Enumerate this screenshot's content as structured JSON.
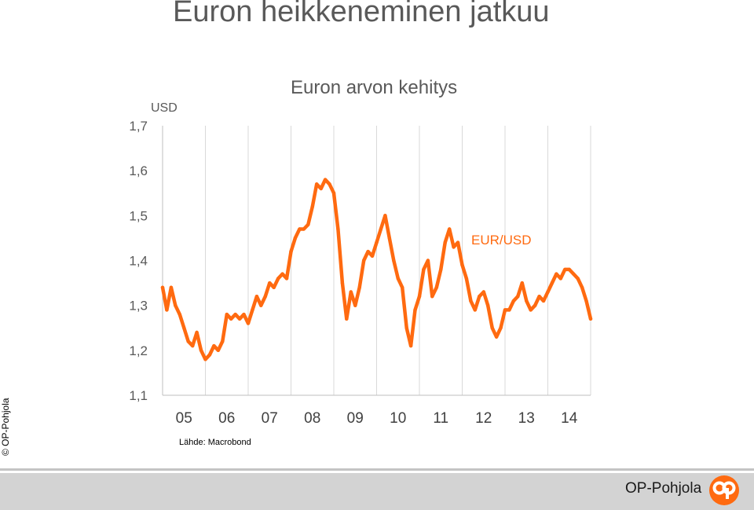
{
  "slide": {
    "title": "Euron heikkeneminen jatkuu",
    "copyright": "© OP-Pohjola",
    "source": "Lähde: Macrobond"
  },
  "footer": {
    "brand": "OP-Pohjola",
    "logo_icon": "op-logo-icon",
    "band_color": "#d3d3d3",
    "logo_color": "#ff6a10"
  },
  "chart_data": {
    "type": "line",
    "title": "Euron arvon kehitys",
    "ylabel": "USD",
    "xlabel": "",
    "x_tick_labels": [
      "05",
      "06",
      "07",
      "08",
      "09",
      "10",
      "11",
      "12",
      "13",
      "14"
    ],
    "y_tick_labels": [
      "1,1",
      "1,2",
      "1,3",
      "1,4",
      "1,5",
      "1,6",
      "1,7"
    ],
    "y_ticks": [
      1.1,
      1.2,
      1.3,
      1.4,
      1.5,
      1.6,
      1.7
    ],
    "xlim": [
      2004.7,
      2014.7
    ],
    "ylim": [
      1.1,
      1.7
    ],
    "grid": "vertical",
    "series_color": "#ff6a10",
    "series": [
      {
        "name": "EUR/USD",
        "x": [
          2004.7,
          2004.8,
          2004.9,
          2005.0,
          2005.1,
          2005.2,
          2005.3,
          2005.4,
          2005.5,
          2005.6,
          2005.7,
          2005.8,
          2005.9,
          2006.0,
          2006.1,
          2006.2,
          2006.3,
          2006.4,
          2006.5,
          2006.6,
          2006.7,
          2006.8,
          2006.9,
          2007.0,
          2007.1,
          2007.2,
          2007.3,
          2007.4,
          2007.5,
          2007.6,
          2007.7,
          2007.8,
          2007.9,
          2008.0,
          2008.1,
          2008.2,
          2008.3,
          2008.4,
          2008.5,
          2008.6,
          2008.7,
          2008.8,
          2008.9,
          2009.0,
          2009.1,
          2009.2,
          2009.3,
          2009.4,
          2009.5,
          2009.6,
          2009.7,
          2009.8,
          2009.9,
          2010.0,
          2010.1,
          2010.2,
          2010.3,
          2010.4,
          2010.5,
          2010.6,
          2010.7,
          2010.8,
          2010.9,
          2011.0,
          2011.1,
          2011.2,
          2011.3,
          2011.4,
          2011.5,
          2011.6,
          2011.7,
          2011.8,
          2011.9,
          2012.0,
          2012.1,
          2012.2,
          2012.3,
          2012.4,
          2012.5,
          2012.6,
          2012.7,
          2012.8,
          2012.9,
          2013.0,
          2013.1,
          2013.2,
          2013.3,
          2013.4,
          2013.5,
          2013.6,
          2013.7,
          2013.8,
          2013.9,
          2014.0,
          2014.1,
          2014.2,
          2014.3,
          2014.4,
          2014.5,
          2014.6,
          2014.7
        ],
        "values": [
          1.34,
          1.29,
          1.34,
          1.3,
          1.28,
          1.25,
          1.22,
          1.21,
          1.24,
          1.2,
          1.18,
          1.19,
          1.21,
          1.2,
          1.22,
          1.28,
          1.27,
          1.28,
          1.27,
          1.28,
          1.26,
          1.29,
          1.32,
          1.3,
          1.32,
          1.35,
          1.34,
          1.36,
          1.37,
          1.36,
          1.42,
          1.45,
          1.47,
          1.47,
          1.48,
          1.52,
          1.57,
          1.56,
          1.58,
          1.57,
          1.55,
          1.47,
          1.35,
          1.27,
          1.33,
          1.3,
          1.34,
          1.4,
          1.42,
          1.41,
          1.44,
          1.47,
          1.5,
          1.45,
          1.4,
          1.36,
          1.34,
          1.25,
          1.21,
          1.29,
          1.32,
          1.38,
          1.4,
          1.32,
          1.34,
          1.38,
          1.44,
          1.47,
          1.43,
          1.44,
          1.39,
          1.36,
          1.31,
          1.29,
          1.32,
          1.33,
          1.3,
          1.25,
          1.23,
          1.25,
          1.29,
          1.29,
          1.31,
          1.32,
          1.35,
          1.31,
          1.29,
          1.3,
          1.32,
          1.31,
          1.33,
          1.35,
          1.37,
          1.36,
          1.38,
          1.38,
          1.37,
          1.36,
          1.34,
          1.31,
          1.27
        ]
      }
    ]
  }
}
